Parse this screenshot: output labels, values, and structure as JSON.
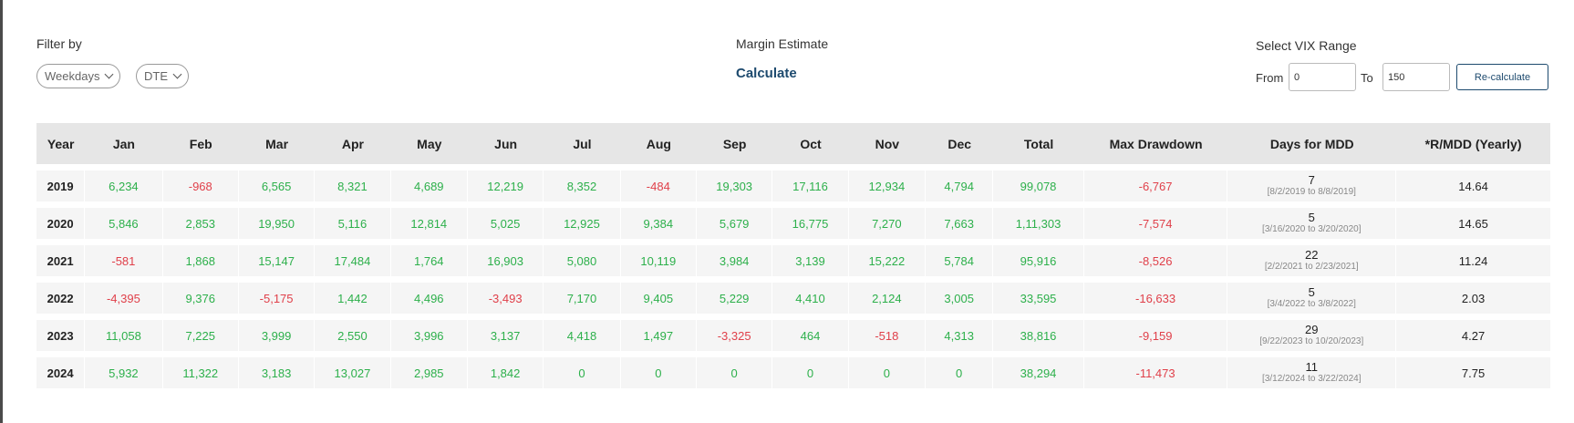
{
  "filters": {
    "label": "Filter by",
    "weekdays": "Weekdays",
    "dte": "DTE"
  },
  "margin": {
    "label": "Margin Estimate",
    "calculate": "Calculate"
  },
  "vix": {
    "label": "Select VIX Range",
    "from_label": "From",
    "from_value": "0",
    "to_label": "To",
    "to_value": "150",
    "recalculate": "Re-calculate"
  },
  "colors": {
    "positive": "#2db04b",
    "negative": "#e0404a",
    "accent": "#1d4a6e"
  },
  "table": {
    "headers": [
      "Year",
      "Jan",
      "Feb",
      "Mar",
      "Apr",
      "May",
      "Jun",
      "Jul",
      "Aug",
      "Sep",
      "Oct",
      "Nov",
      "Dec",
      "Total",
      "Max Drawdown",
      "Days for MDD",
      "*R/MDD (Yearly)"
    ],
    "rows": [
      {
        "year": "2019",
        "months": [
          "6,234",
          "-968",
          "6,565",
          "8,321",
          "4,689",
          "12,219",
          "8,352",
          "-484",
          "19,303",
          "17,116",
          "12,934",
          "4,794"
        ],
        "total": "99,078",
        "max_drawdown": "-6,767",
        "mdd_days": "7",
        "mdd_range": "[8/2/2019 to 8/8/2019]",
        "r_mdd": "14.64"
      },
      {
        "year": "2020",
        "months": [
          "5,846",
          "2,853",
          "19,950",
          "5,116",
          "12,814",
          "5,025",
          "12,925",
          "9,384",
          "5,679",
          "16,775",
          "7,270",
          "7,663"
        ],
        "total": "1,11,303",
        "max_drawdown": "-7,574",
        "mdd_days": "5",
        "mdd_range": "[3/16/2020 to 3/20/2020]",
        "r_mdd": "14.65"
      },
      {
        "year": "2021",
        "months": [
          "-581",
          "1,868",
          "15,147",
          "17,484",
          "1,764",
          "16,903",
          "5,080",
          "10,119",
          "3,984",
          "3,139",
          "15,222",
          "5,784"
        ],
        "total": "95,916",
        "max_drawdown": "-8,526",
        "mdd_days": "22",
        "mdd_range": "[2/2/2021 to 2/23/2021]",
        "r_mdd": "11.24"
      },
      {
        "year": "2022",
        "months": [
          "-4,395",
          "9,376",
          "-5,175",
          "1,442",
          "4,496",
          "-3,493",
          "7,170",
          "9,405",
          "5,229",
          "4,410",
          "2,124",
          "3,005"
        ],
        "total": "33,595",
        "max_drawdown": "-16,633",
        "mdd_days": "5",
        "mdd_range": "[3/4/2022 to 3/8/2022]",
        "r_mdd": "2.03"
      },
      {
        "year": "2023",
        "months": [
          "11,058",
          "7,225",
          "3,999",
          "2,550",
          "3,996",
          "3,137",
          "4,418",
          "1,497",
          "-3,325",
          "464",
          "-518",
          "4,313"
        ],
        "total": "38,816",
        "max_drawdown": "-9,159",
        "mdd_days": "29",
        "mdd_range": "[9/22/2023 to 10/20/2023]",
        "r_mdd": "4.27"
      },
      {
        "year": "2024",
        "months": [
          "5,932",
          "11,322",
          "3,183",
          "13,027",
          "2,985",
          "1,842",
          "0",
          "0",
          "0",
          "0",
          "0",
          "0"
        ],
        "total": "38,294",
        "max_drawdown": "-11,473",
        "mdd_days": "11",
        "mdd_range": "[3/12/2024 to 3/22/2024]",
        "r_mdd": "7.75"
      }
    ]
  }
}
